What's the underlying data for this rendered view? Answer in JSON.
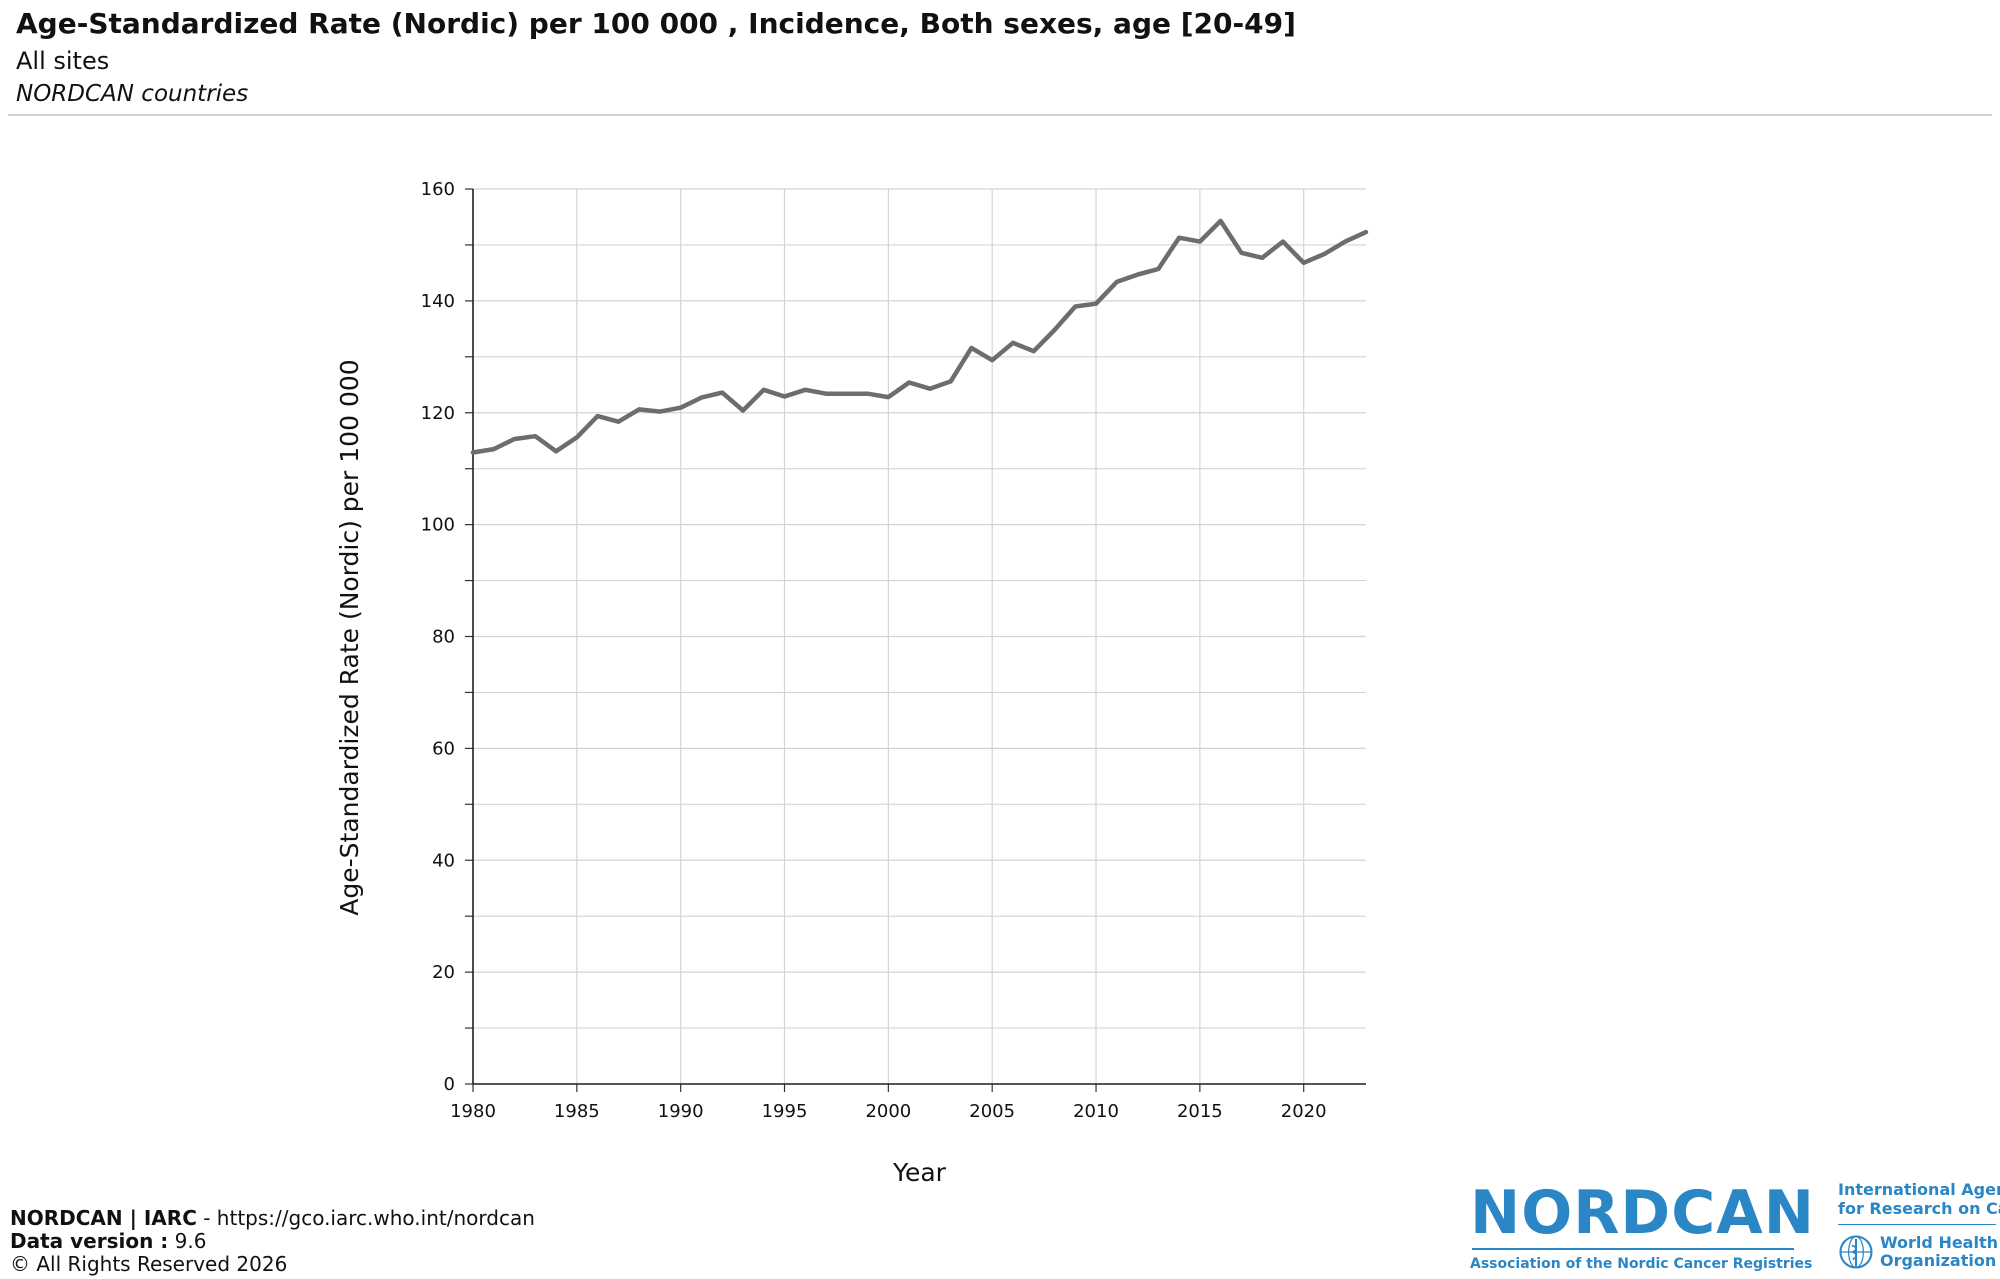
{
  "header": {
    "title": "Age-Standardized Rate (Nordic) per 100 000 , Incidence, Both sexes, age [20-49]",
    "subtitle": "All sites",
    "subtitle2": "NORDCAN countries"
  },
  "chart_data": {
    "type": "line",
    "xlabel": "Year",
    "ylabel": "Age-Standardized Rate (Nordic) per 100 000",
    "xlim": [
      1980,
      2023
    ],
    "ylim": [
      0,
      160
    ],
    "x_ticks": [
      1980,
      1985,
      1990,
      1995,
      2000,
      2005,
      2010,
      2015,
      2020
    ],
    "y_ticks": [
      0,
      20,
      40,
      60,
      80,
      100,
      120,
      140,
      160
    ],
    "grid": true,
    "line_color": "#6d6d6f",
    "series": [
      {
        "x": [
          1980,
          1981,
          1982,
          1983,
          1984,
          1985,
          1986,
          1987,
          1988,
          1989,
          1990,
          1991,
          1992,
          1993,
          1994,
          1995,
          1996,
          1997,
          1998,
          1999,
          2000,
          2001,
          2002,
          2003,
          2004,
          2005,
          2006,
          2007,
          2008,
          2009,
          2010,
          2011,
          2012,
          2013,
          2014,
          2015,
          2016,
          2017,
          2018,
          2019,
          2020,
          2021,
          2022,
          2023
        ],
        "values": [
          112.9,
          113.5,
          115.3,
          115.8,
          113.1,
          115.6,
          119.4,
          118.4,
          120.6,
          120.2,
          120.9,
          122.7,
          123.6,
          120.4,
          124.1,
          122.9,
          124.1,
          123.4,
          123.4,
          123.4,
          122.8,
          125.4,
          124.3,
          125.6,
          131.6,
          129.4,
          132.5,
          131.0,
          134.8,
          139.0,
          139.5,
          143.4,
          144.7,
          145.7,
          151.3,
          150.6,
          154.3,
          148.6,
          147.7,
          150.6,
          146.8,
          148.4,
          150.6,
          152.3
        ]
      }
    ]
  },
  "footer": {
    "line1_bold": "NORDCAN | IARC",
    "line1_rest": " - https://gco.iarc.who.int/nordcan",
    "line2_bold": "Data version :",
    "line2_rest": " 9.6",
    "line3": "© All Rights Reserved 2026"
  },
  "logos": {
    "nordcan_word": "NORDCAN",
    "nordcan_tag": "Association of the Nordic Cancer Registries",
    "iarc_line1": "International Agency",
    "iarc_line2": "for Research on Cancer",
    "who_line1": "World Health",
    "who_line2": "Organization",
    "brand_color": "#2b86c5"
  }
}
